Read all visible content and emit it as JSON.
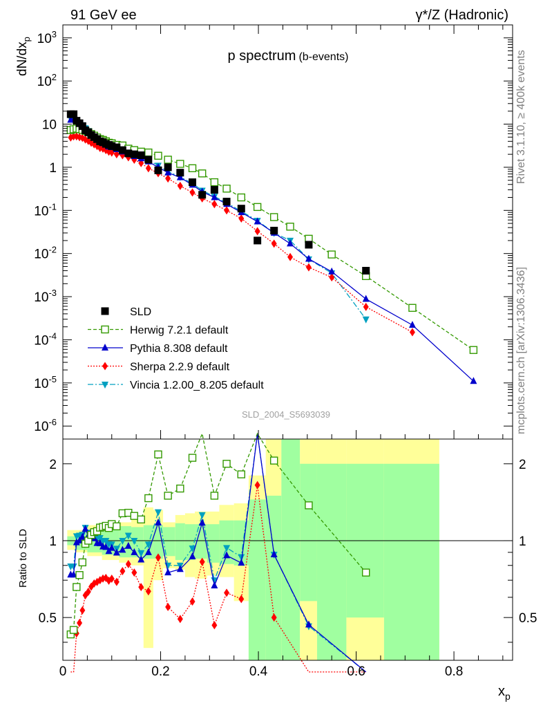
{
  "header": {
    "left": "91 GeV ee",
    "right": "γ*/Z (Hadronic)"
  },
  "side_labels": {
    "top": "Rivet 3.1.10, ≥ 400k events",
    "bottom": "mcplots.cern.ch [arXiv:1306.3436]"
  },
  "watermark": "SLD_2004_S5693039",
  "colors": {
    "data": "#000000",
    "herwig": "#339900",
    "pythia": "#0000cc",
    "sherpa": "#ff0000",
    "vincia": "#00a0c0",
    "band_inner": "#a0ffa0",
    "band_outer": "#ffff99"
  },
  "chart_data": [
    {
      "type": "scatter",
      "title": "p spectrum",
      "subtitle": "(b-events)",
      "ylabel": "dN/dx_p",
      "xlabel": "",
      "yscale": "log",
      "xlim": [
        0,
        0.92
      ],
      "ylim": [
        5e-07,
        2000
      ],
      "yticks": [
        "10^-6",
        "10^-5",
        "10^-4",
        "10^-3",
        "10^-2",
        "10^-1",
        "1",
        "10",
        "10^2",
        "10^3"
      ],
      "legend_position": "bottom-left",
      "series": [
        {
          "name": "SLD",
          "marker": "filled-square",
          "points": [
            [
              0.016,
              17
            ],
            [
              0.022,
              17
            ],
            [
              0.028,
              12
            ],
            [
              0.034,
              10.5
            ],
            [
              0.04,
              9
            ],
            [
              0.046,
              7.2
            ],
            [
              0.052,
              6.5
            ],
            [
              0.058,
              5.6
            ],
            [
              0.064,
              5.0
            ],
            [
              0.07,
              4.5
            ],
            [
              0.076,
              4.0
            ],
            [
              0.082,
              3.8
            ],
            [
              0.088,
              3.5
            ],
            [
              0.094,
              3.3
            ],
            [
              0.1,
              3.1
            ],
            [
              0.11,
              2.9
            ],
            [
              0.122,
              2.5
            ],
            [
              0.134,
              2.1
            ],
            [
              0.146,
              2.0
            ],
            [
              0.16,
              1.9
            ],
            [
              0.175,
              1.5
            ],
            [
              0.195,
              0.85
            ],
            [
              0.215,
              1.0
            ],
            [
              0.24,
              0.75
            ],
            [
              0.265,
              0.45
            ],
            [
              0.285,
              0.23
            ],
            [
              0.31,
              0.3
            ],
            [
              0.335,
              0.16
            ],
            [
              0.365,
              0.11
            ],
            [
              0.398,
              0.02
            ],
            [
              0.432,
              0.034
            ],
            [
              0.503,
              0.016
            ],
            [
              0.62,
              0.004
            ]
          ]
        },
        {
          "name": "Herwig 7.2.1 default",
          "marker": "open-square",
          "points": [
            [
              0.016,
              7.3
            ],
            [
              0.022,
              7.6
            ],
            [
              0.028,
              7.9
            ],
            [
              0.034,
              7.7
            ],
            [
              0.04,
              7.4
            ],
            [
              0.046,
              7.0
            ],
            [
              0.052,
              6.5
            ],
            [
              0.058,
              5.9
            ],
            [
              0.064,
              5.4
            ],
            [
              0.07,
              4.9
            ],
            [
              0.076,
              4.5
            ],
            [
              0.082,
              4.3
            ],
            [
              0.088,
              4.0
            ],
            [
              0.094,
              3.7
            ],
            [
              0.1,
              3.6
            ],
            [
              0.11,
              3.3
            ],
            [
              0.122,
              3.2
            ],
            [
              0.134,
              2.7
            ],
            [
              0.146,
              2.5
            ],
            [
              0.16,
              2.3
            ],
            [
              0.175,
              2.2
            ],
            [
              0.195,
              1.85
            ],
            [
              0.215,
              1.5
            ],
            [
              0.24,
              1.2
            ],
            [
              0.265,
              0.95
            ],
            [
              0.285,
              0.72
            ],
            [
              0.31,
              0.45
            ],
            [
              0.335,
              0.32
            ],
            [
              0.365,
              0.2
            ],
            [
              0.398,
              0.12
            ],
            [
              0.432,
              0.07
            ],
            [
              0.465,
              0.042
            ],
            [
              0.503,
              0.022
            ],
            [
              0.55,
              0.0095
            ],
            [
              0.62,
              0.003
            ],
            [
              0.715,
              0.00055
            ],
            [
              0.84,
              5.8e-05
            ]
          ]
        },
        {
          "name": "Pythia 8.308 default",
          "marker": "filled-triangle-up",
          "points": [
            [
              0.016,
              12.5
            ],
            [
              0.022,
              12.5
            ],
            [
              0.028,
              11.8
            ],
            [
              0.034,
              10.5
            ],
            [
              0.04,
              9.3
            ],
            [
              0.046,
              8.0
            ],
            [
              0.052,
              6.8
            ],
            [
              0.058,
              5.8
            ],
            [
              0.064,
              5.1
            ],
            [
              0.07,
              4.4
            ],
            [
              0.076,
              3.9
            ],
            [
              0.082,
              3.6
            ],
            [
              0.088,
              3.3
            ],
            [
              0.094,
              3.0
            ],
            [
              0.1,
              2.9
            ],
            [
              0.11,
              2.6
            ],
            [
              0.122,
              2.3
            ],
            [
              0.134,
              2.0
            ],
            [
              0.146,
              1.8
            ],
            [
              0.16,
              1.6
            ],
            [
              0.175,
              1.35
            ],
            [
              0.195,
              1.0
            ],
            [
              0.215,
              0.75
            ],
            [
              0.24,
              0.58
            ],
            [
              0.265,
              0.39
            ],
            [
              0.285,
              0.27
            ],
            [
              0.31,
              0.2
            ],
            [
              0.335,
              0.14
            ],
            [
              0.365,
              0.09
            ],
            [
              0.398,
              0.055
            ],
            [
              0.432,
              0.03
            ],
            [
              0.465,
              0.017
            ],
            [
              0.503,
              0.0075
            ],
            [
              0.55,
              0.0038
            ],
            [
              0.62,
              0.00088
            ],
            [
              0.715,
              0.00022
            ],
            [
              0.84,
              1.1e-05
            ]
          ]
        },
        {
          "name": "Sherpa 2.2.9 default",
          "marker": "filled-diamond",
          "points": [
            [
              0.016,
              4.9
            ],
            [
              0.022,
              5.2
            ],
            [
              0.028,
              5.2
            ],
            [
              0.034,
              5.0
            ],
            [
              0.04,
              4.8
            ],
            [
              0.046,
              4.4
            ],
            [
              0.052,
              4.1
            ],
            [
              0.058,
              3.7
            ],
            [
              0.064,
              3.4
            ],
            [
              0.07,
              3.1
            ],
            [
              0.076,
              2.8
            ],
            [
              0.082,
              2.7
            ],
            [
              0.088,
              2.5
            ],
            [
              0.094,
              2.3
            ],
            [
              0.1,
              2.2
            ],
            [
              0.11,
              2.0
            ],
            [
              0.122,
              1.9
            ],
            [
              0.134,
              1.7
            ],
            [
              0.146,
              1.5
            ],
            [
              0.16,
              1.25
            ],
            [
              0.175,
              0.95
            ],
            [
              0.195,
              0.73
            ],
            [
              0.215,
              0.55
            ],
            [
              0.24,
              0.37
            ],
            [
              0.265,
              0.26
            ],
            [
              0.285,
              0.19
            ],
            [
              0.31,
              0.14
            ],
            [
              0.335,
              0.1
            ],
            [
              0.365,
              0.065
            ],
            [
              0.398,
              0.033
            ],
            [
              0.432,
              0.017
            ],
            [
              0.465,
              0.0083
            ],
            [
              0.503,
              0.0048
            ],
            [
              0.55,
              0.0028
            ],
            [
              0.62,
              0.00058
            ],
            [
              0.715,
              0.00015
            ]
          ]
        },
        {
          "name": "Vincia 1.2.00_8.205 default",
          "marker": "filled-triangle-down",
          "points": [
            [
              0.016,
              13.5
            ],
            [
              0.022,
              13.5
            ],
            [
              0.028,
              12.5
            ],
            [
              0.034,
              11.0
            ],
            [
              0.04,
              9.5
            ],
            [
              0.046,
              8.1
            ],
            [
              0.052,
              7.0
            ],
            [
              0.058,
              6.0
            ],
            [
              0.064,
              5.3
            ],
            [
              0.07,
              4.6
            ],
            [
              0.076,
              4.1
            ],
            [
              0.082,
              3.8
            ],
            [
              0.088,
              3.5
            ],
            [
              0.094,
              3.2
            ],
            [
              0.1,
              3.0
            ],
            [
              0.11,
              2.7
            ],
            [
              0.122,
              2.5
            ],
            [
              0.134,
              2.2
            ],
            [
              0.146,
              2.0
            ],
            [
              0.16,
              1.7
            ],
            [
              0.175,
              1.45
            ],
            [
              0.195,
              1.1
            ],
            [
              0.215,
              0.8
            ],
            [
              0.24,
              0.6
            ],
            [
              0.265,
              0.42
            ],
            [
              0.285,
              0.29
            ],
            [
              0.31,
              0.21
            ],
            [
              0.335,
              0.15
            ],
            [
              0.365,
              0.095
            ],
            [
              0.398,
              0.058
            ],
            [
              0.432,
              0.03
            ],
            [
              0.465,
              0.02
            ],
            [
              0.503,
              0.0074
            ],
            [
              0.55,
              0.0035
            ],
            [
              0.62,
              0.0003
            ]
          ]
        }
      ]
    },
    {
      "type": "scatter",
      "ylabel": "Ratio to SLD",
      "xlabel": "x_p",
      "xlim": [
        0,
        0.92
      ],
      "ylim": [
        0.34,
        2.5
      ],
      "xticks": [
        "0",
        "0.2",
        "0.4",
        "0.6",
        "0.8"
      ],
      "yticks": [
        "0.5",
        "1",
        "2"
      ],
      "bands": [
        [
          0.009,
          0.025,
          0.96,
          1.04,
          0.92,
          1.1
        ],
        [
          0.025,
          0.05,
          0.92,
          1.07,
          0.9,
          1.1
        ],
        [
          0.05,
          0.08,
          0.9,
          1.1,
          0.87,
          1.15
        ],
        [
          0.08,
          0.115,
          0.88,
          1.11,
          0.84,
          1.15
        ],
        [
          0.115,
          0.14,
          0.86,
          1.14,
          0.82,
          1.18
        ],
        [
          0.14,
          0.165,
          0.86,
          1.13,
          0.8,
          1.25
        ],
        [
          0.165,
          0.185,
          0.85,
          1.15,
          0.38,
          1.35
        ],
        [
          0.185,
          0.205,
          0.85,
          1.15,
          0.7,
          1.32
        ],
        [
          0.205,
          0.23,
          0.87,
          1.13,
          0.78,
          1.18
        ],
        [
          0.23,
          0.25,
          0.84,
          1.17,
          0.77,
          1.26
        ],
        [
          0.25,
          0.27,
          0.84,
          1.16,
          0.72,
          1.28
        ],
        [
          0.27,
          0.295,
          0.85,
          1.16,
          0.71,
          1.3
        ],
        [
          0.295,
          0.32,
          0.82,
          1.16,
          0.73,
          1.3
        ],
        [
          0.32,
          0.35,
          0.81,
          1.2,
          0.72,
          1.38
        ],
        [
          0.35,
          0.38,
          0.8,
          1.2,
          0.58,
          1.4
        ],
        [
          0.38,
          0.415,
          0.34,
          1.45,
          0.34,
          1.8
        ],
        [
          0.415,
          0.447,
          0.34,
          1.5,
          0.34,
          2.5
        ],
        [
          0.447,
          0.485,
          0.34,
          2.5,
          0.34,
          2.5
        ],
        [
          0.485,
          0.52,
          0.58,
          2.0,
          0.34,
          2.5
        ],
        [
          0.52,
          0.58,
          0.34,
          2.0,
          0.34,
          2.5
        ],
        [
          0.58,
          0.657,
          0.5,
          2.0,
          0.34,
          2.5
        ],
        [
          0.657,
          0.77,
          0.34,
          2.0,
          0.34,
          2.5
        ]
      ]
    }
  ]
}
